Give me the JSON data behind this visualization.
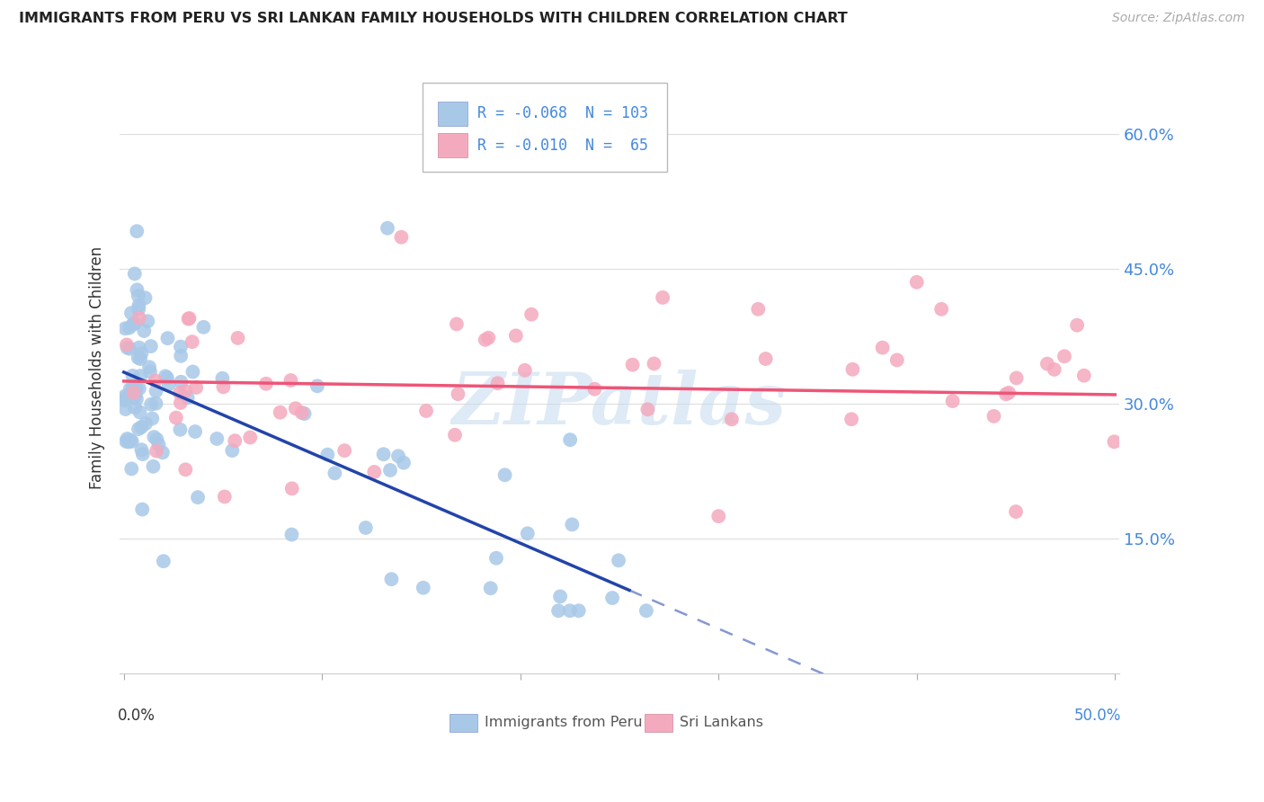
{
  "title": "IMMIGRANTS FROM PERU VS SRI LANKAN FAMILY HOUSEHOLDS WITH CHILDREN CORRELATION CHART",
  "source": "Source: ZipAtlas.com",
  "ylabel": "Family Households with Children",
  "y_ticks_right": [
    "15.0%",
    "30.0%",
    "45.0%",
    "60.0%"
  ],
  "y_tick_vals": [
    0.15,
    0.3,
    0.45,
    0.6
  ],
  "xlim": [
    -0.002,
    0.502
  ],
  "ylim": [
    0.0,
    0.68
  ],
  "blue_color": "#A8C8E8",
  "pink_color": "#F4AABE",
  "blue_line_color": "#2244AA",
  "pink_line_color": "#EE5577",
  "right_label_color": "#4488DD",
  "watermark": "ZIPatlas",
  "legend_text1": "R = -0.068  N = 103",
  "legend_text2": "R = -0.010  N =  65",
  "blue_intercept": 0.335,
  "blue_slope": -0.95,
  "pink_intercept": 0.325,
  "pink_slope": -0.03
}
